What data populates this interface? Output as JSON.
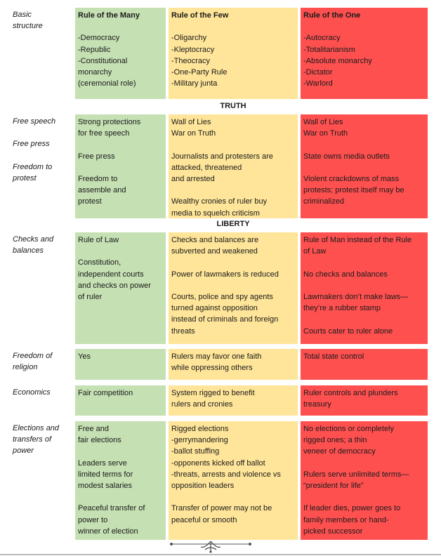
{
  "columns": {
    "many": "Rule of the Many",
    "few": "Rule of the Few",
    "one": "Rule of the One"
  },
  "colors": {
    "many": "#c5e0b3",
    "few": "#ffe599",
    "one": "#ff5050"
  },
  "sections": {
    "truth": "TRUTH",
    "liberty": "LIBERTY"
  },
  "rows": {
    "basic": {
      "label": "Basic\nstructure",
      "many": "-Democracy\n-Republic\n-Constitutional\nmonarchy\n(ceremonial role)",
      "few": "-Oligarchy\n-Kleptocracy\n-Theocracy\n-One-Party Rule\n-Military junta",
      "one": "-Autocracy\n-Totalitarianism\n-Absolute monarchy\n-Dictator\n-Warlord"
    },
    "truth": {
      "label": "Free speech\n\nFree press\n\nFreedom to\nprotest",
      "many": "Strong protections\nfor free speech\n\nFree press\n\nFreedom to\nassemble and\nprotest",
      "few": "Wall of Lies\nWar on Truth\n\nJournalists and protesters are\nattacked, threatened\nand arrested\n\nWealthy cronies of ruler buy\nmedia to squelch criticism",
      "one": "Wall of Lies\nWar on Truth\n\nState owns media outlets\n\nViolent crackdowns of mass\nprotests; protest itself may be\ncriminalized"
    },
    "checks": {
      "label": "Checks and\nbalances",
      "many": "Rule of Law\n\nConstitution,\nindependent courts\nand checks on power\nof ruler",
      "few": "Checks and balances are\nsubverted and weakened\n\nPower of lawmakers is reduced\n\nCourts, police and spy agents\nturned against opposition\ninstead of criminals and foreign\nthreats",
      "one": "Rule of Man instead of the Rule\nof Law\n\nNo checks and balances\n\nLawmakers don’t make laws—\nthey’re a rubber stamp\n\nCourts cater to ruler alone"
    },
    "religion": {
      "label": "Freedom of\nreligion",
      "many": "Yes",
      "few": "Rulers may favor one faith\nwhile oppressing others",
      "one": "Total state control"
    },
    "economics": {
      "label": "Economics",
      "many": "Fair competition",
      "few": "System rigged to benefit\nrulers and cronies",
      "one": "Ruler controls and plunders\ntreasury"
    },
    "elections": {
      "label": "Elections and\ntransfers of\npower",
      "many": "Free and\nfair elections\n\nLeaders serve\nlimited terms for\nmodest salaries\n\nPeaceful transfer of\npower to\nwinner of election",
      "few": "Rigged elections\n-gerrymandering\n-ballot stuffing\n-opponents kicked off ballot\n-threats, arrests and violence vs\nopposition leaders\n\nTransfer of power may not be\npeaceful or smooth",
      "one": "No elections or completely\nrigged ones; a thin\nveneer of democracy\n\nRulers serve unlimited terms—\n“president for life”\n\nIf leader dies, power goes to\nfamily  members or hand-\npicked successor"
    }
  }
}
